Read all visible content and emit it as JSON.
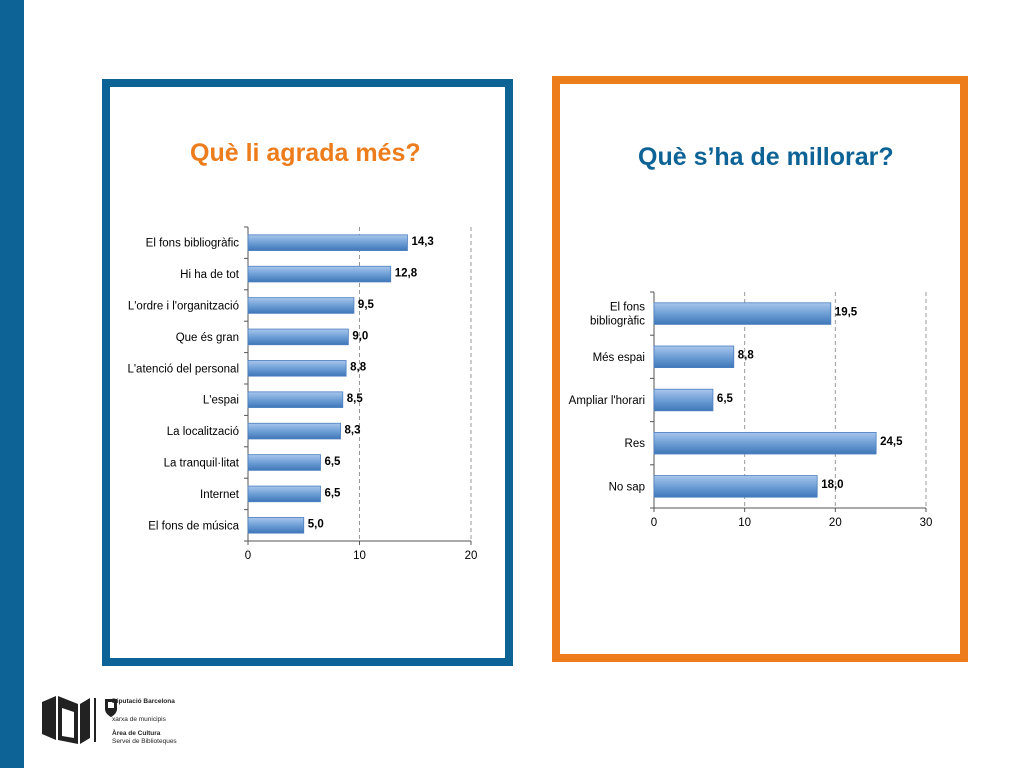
{
  "slide": {
    "left_title": "Què li agrada més?",
    "right_title": "Què s’ha de millorar?",
    "colors": {
      "blue": "#0d6396",
      "orange": "#ec7c1c",
      "bar": "#6e9fd6"
    }
  },
  "chart_data": [
    {
      "type": "bar",
      "orientation": "horizontal",
      "title": "Què li agrada més?",
      "categories": [
        "El fons bibliogràfic",
        "Hi ha de tot",
        "L'ordre i l'organització",
        "Que és gran",
        "L'atenció del personal",
        "L'espai",
        "La localització",
        "La tranquil·litat",
        "Internet",
        "El fons de música"
      ],
      "values": [
        14.3,
        12.8,
        9.5,
        9.0,
        8.8,
        8.5,
        8.3,
        6.5,
        6.5,
        5.0
      ],
      "value_labels": [
        "14,3",
        "12,8",
        "9,5",
        "9,0",
        "8,8",
        "8,5",
        "8,3",
        "6,5",
        "6,5",
        "5,0"
      ],
      "xlim": [
        0,
        20
      ],
      "xticks": [
        "0",
        "10",
        "20"
      ],
      "grid": "vertical dashed"
    },
    {
      "type": "bar",
      "orientation": "horizontal",
      "title": "Què s’ha de millorar?",
      "categories": [
        [
          "El fons",
          "bibliogràfic"
        ],
        [
          "Més espai"
        ],
        [
          "Ampliar l'horari"
        ],
        [
          "Res"
        ],
        [
          "No sap"
        ]
      ],
      "values": [
        19.5,
        8.8,
        6.5,
        24.5,
        18.0
      ],
      "value_labels": [
        "19,5",
        "8,8",
        "6,5",
        "24,5",
        "18,0"
      ],
      "xlim": [
        0,
        30
      ],
      "xticks": [
        "0",
        "10",
        "20",
        "30"
      ],
      "grid": "vertical dashed"
    }
  ],
  "footer": {
    "logo_name": "Diputació Barcelona",
    "logo_lines": [
      "xarxa de municipis"
    ],
    "area_title": "Àrea de Cultura",
    "area_sub": "Servei de Biblioteques"
  }
}
